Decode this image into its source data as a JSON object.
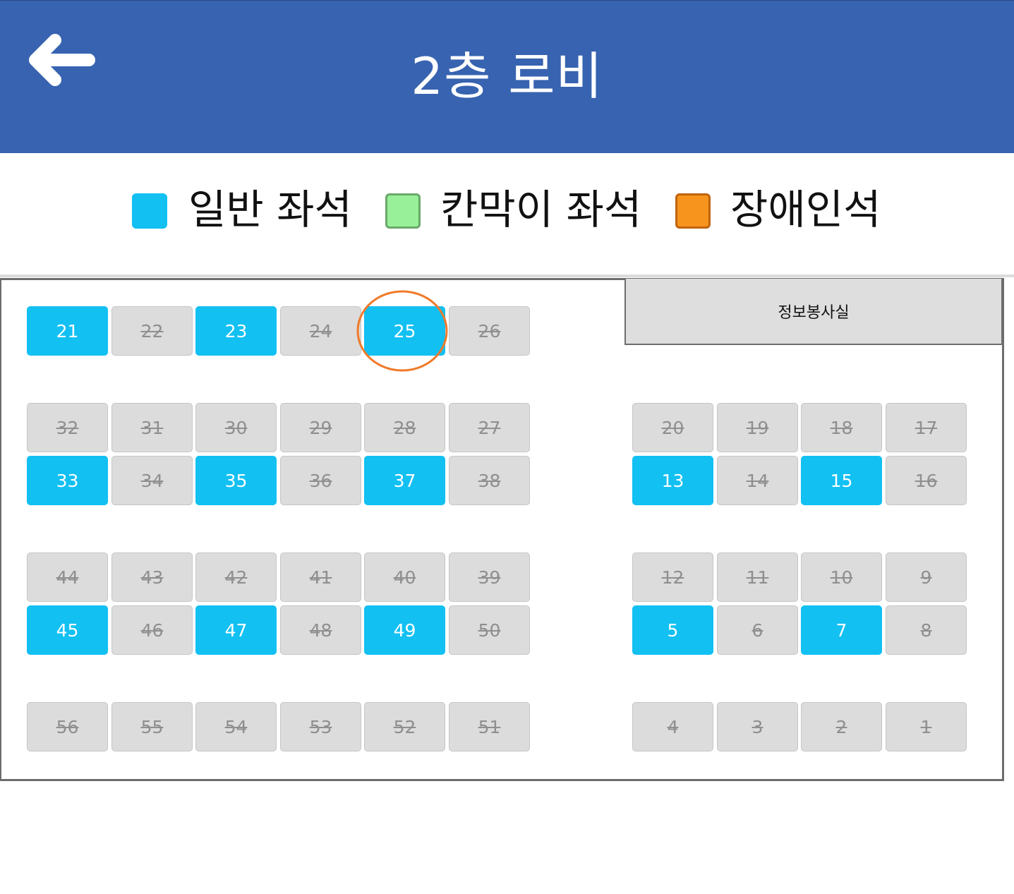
{
  "header": {
    "title": "2층 로비"
  },
  "legend": [
    {
      "label": "일반 좌석",
      "color": "#12c0f2",
      "border": "#12c0f2"
    },
    {
      "label": "칸막이 좌석",
      "color": "#98f098",
      "border": "#6aa86a"
    },
    {
      "label": "장애인석",
      "color": "#f7941d",
      "border": "#c0650e"
    }
  ],
  "room": {
    "label": "정보봉사실"
  },
  "colors": {
    "header": "#3763b0",
    "available": "#12c0f2",
    "taken": "#dcdcdc",
    "highlight": "#f07a2a"
  },
  "highlighted_seat": "25",
  "seat_blocks": [
    {
      "rows": [
        [
          {
            "n": "21",
            "s": "avail"
          },
          {
            "n": "22",
            "s": "taken"
          },
          {
            "n": "23",
            "s": "avail"
          },
          {
            "n": "24",
            "s": "taken"
          },
          {
            "n": "25",
            "s": "avail"
          },
          {
            "n": "26",
            "s": "taken"
          }
        ]
      ]
    },
    {
      "rows": [
        [
          {
            "n": "32",
            "s": "taken"
          },
          {
            "n": "31",
            "s": "taken"
          },
          {
            "n": "30",
            "s": "taken"
          },
          {
            "n": "29",
            "s": "taken"
          },
          {
            "n": "28",
            "s": "taken"
          },
          {
            "n": "27",
            "s": "taken"
          }
        ],
        [
          {
            "n": "33",
            "s": "avail"
          },
          {
            "n": "34",
            "s": "taken"
          },
          {
            "n": "35",
            "s": "avail"
          },
          {
            "n": "36",
            "s": "taken"
          },
          {
            "n": "37",
            "s": "avail"
          },
          {
            "n": "38",
            "s": "taken"
          }
        ]
      ]
    },
    {
      "rows": [
        [
          {
            "n": "20",
            "s": "taken"
          },
          {
            "n": "19",
            "s": "taken"
          },
          {
            "n": "18",
            "s": "taken"
          },
          {
            "n": "17",
            "s": "taken"
          }
        ],
        [
          {
            "n": "13",
            "s": "avail"
          },
          {
            "n": "14",
            "s": "taken"
          },
          {
            "n": "15",
            "s": "avail"
          },
          {
            "n": "16",
            "s": "taken"
          }
        ]
      ]
    },
    {
      "rows": [
        [
          {
            "n": "44",
            "s": "taken"
          },
          {
            "n": "43",
            "s": "taken"
          },
          {
            "n": "42",
            "s": "taken"
          },
          {
            "n": "41",
            "s": "taken"
          },
          {
            "n": "40",
            "s": "taken"
          },
          {
            "n": "39",
            "s": "taken"
          }
        ],
        [
          {
            "n": "45",
            "s": "avail"
          },
          {
            "n": "46",
            "s": "taken"
          },
          {
            "n": "47",
            "s": "avail"
          },
          {
            "n": "48",
            "s": "taken"
          },
          {
            "n": "49",
            "s": "avail"
          },
          {
            "n": "50",
            "s": "taken"
          }
        ]
      ]
    },
    {
      "rows": [
        [
          {
            "n": "12",
            "s": "taken"
          },
          {
            "n": "11",
            "s": "taken"
          },
          {
            "n": "10",
            "s": "taken"
          },
          {
            "n": "9",
            "s": "taken"
          }
        ],
        [
          {
            "n": "5",
            "s": "avail"
          },
          {
            "n": "6",
            "s": "taken"
          },
          {
            "n": "7",
            "s": "avail"
          },
          {
            "n": "8",
            "s": "taken"
          }
        ]
      ]
    },
    {
      "rows": [
        [
          {
            "n": "56",
            "s": "taken"
          },
          {
            "n": "55",
            "s": "taken"
          },
          {
            "n": "54",
            "s": "taken"
          },
          {
            "n": "53",
            "s": "taken"
          },
          {
            "n": "52",
            "s": "taken"
          },
          {
            "n": "51",
            "s": "taken"
          }
        ]
      ]
    },
    {
      "rows": [
        [
          {
            "n": "4",
            "s": "taken"
          },
          {
            "n": "3",
            "s": "taken"
          },
          {
            "n": "2",
            "s": "taken"
          },
          {
            "n": "1",
            "s": "taken"
          }
        ]
      ]
    }
  ]
}
